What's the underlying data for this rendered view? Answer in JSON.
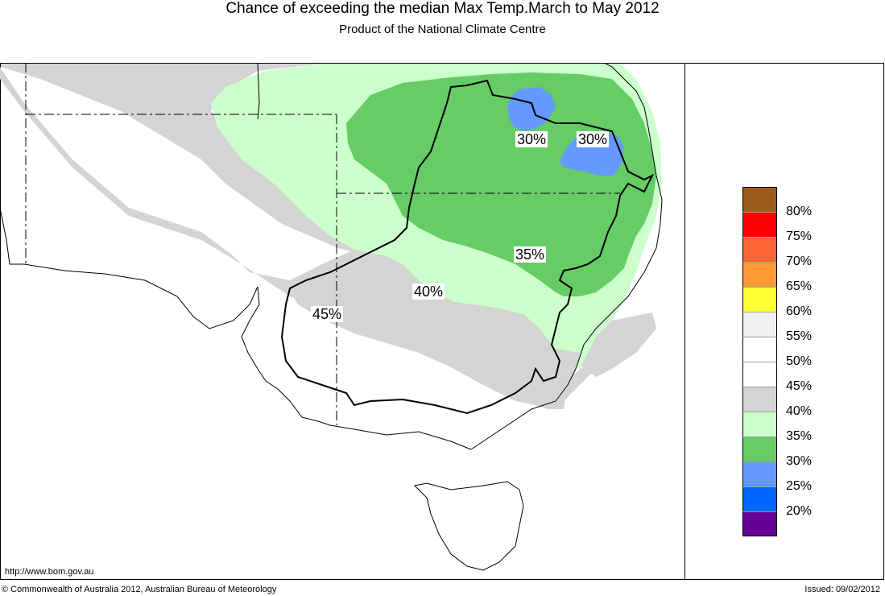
{
  "header": {
    "title": "Chance of exceeding the median Max Temp.March to May 2012",
    "subtitle": "Product of the National Climate Centre"
  },
  "map": {
    "contour_labels": [
      {
        "id": "label-30-west",
        "text": "30%"
      },
      {
        "id": "label-30-east",
        "text": "30%"
      },
      {
        "id": "label-35",
        "text": "35%"
      },
      {
        "id": "label-40",
        "text": "40%"
      },
      {
        "id": "label-45",
        "text": "45%"
      }
    ]
  },
  "legend": {
    "items": [
      {
        "label": "80%",
        "color": "#9c5b1a"
      },
      {
        "label": "75%",
        "color": "#ff0000"
      },
      {
        "label": "70%",
        "color": "#ff6633"
      },
      {
        "label": "65%",
        "color": "#ff9933"
      },
      {
        "label": "60%",
        "color": "#ffff33"
      },
      {
        "label": "55%",
        "color": "#f0f0f0"
      },
      {
        "label": "50%",
        "color": "#ffffff"
      },
      {
        "label": "45%",
        "color": "#ffffff"
      },
      {
        "label": "40%",
        "color": "#d4d4d4"
      },
      {
        "label": "35%",
        "color": "#ccffcc"
      },
      {
        "label": "30%",
        "color": "#66cc66"
      },
      {
        "label": "25%",
        "color": "#6699ff"
      },
      {
        "label": "20%",
        "color": "#0066ff"
      },
      {
        "label": "",
        "color": "#660099"
      }
    ]
  },
  "footer": {
    "url": "http://www.bom.gov.au",
    "copyright": "© Commonwealth of Australia 2012, Australian Bureau of Meteorology",
    "issued": "Issued: 09/02/2012"
  }
}
